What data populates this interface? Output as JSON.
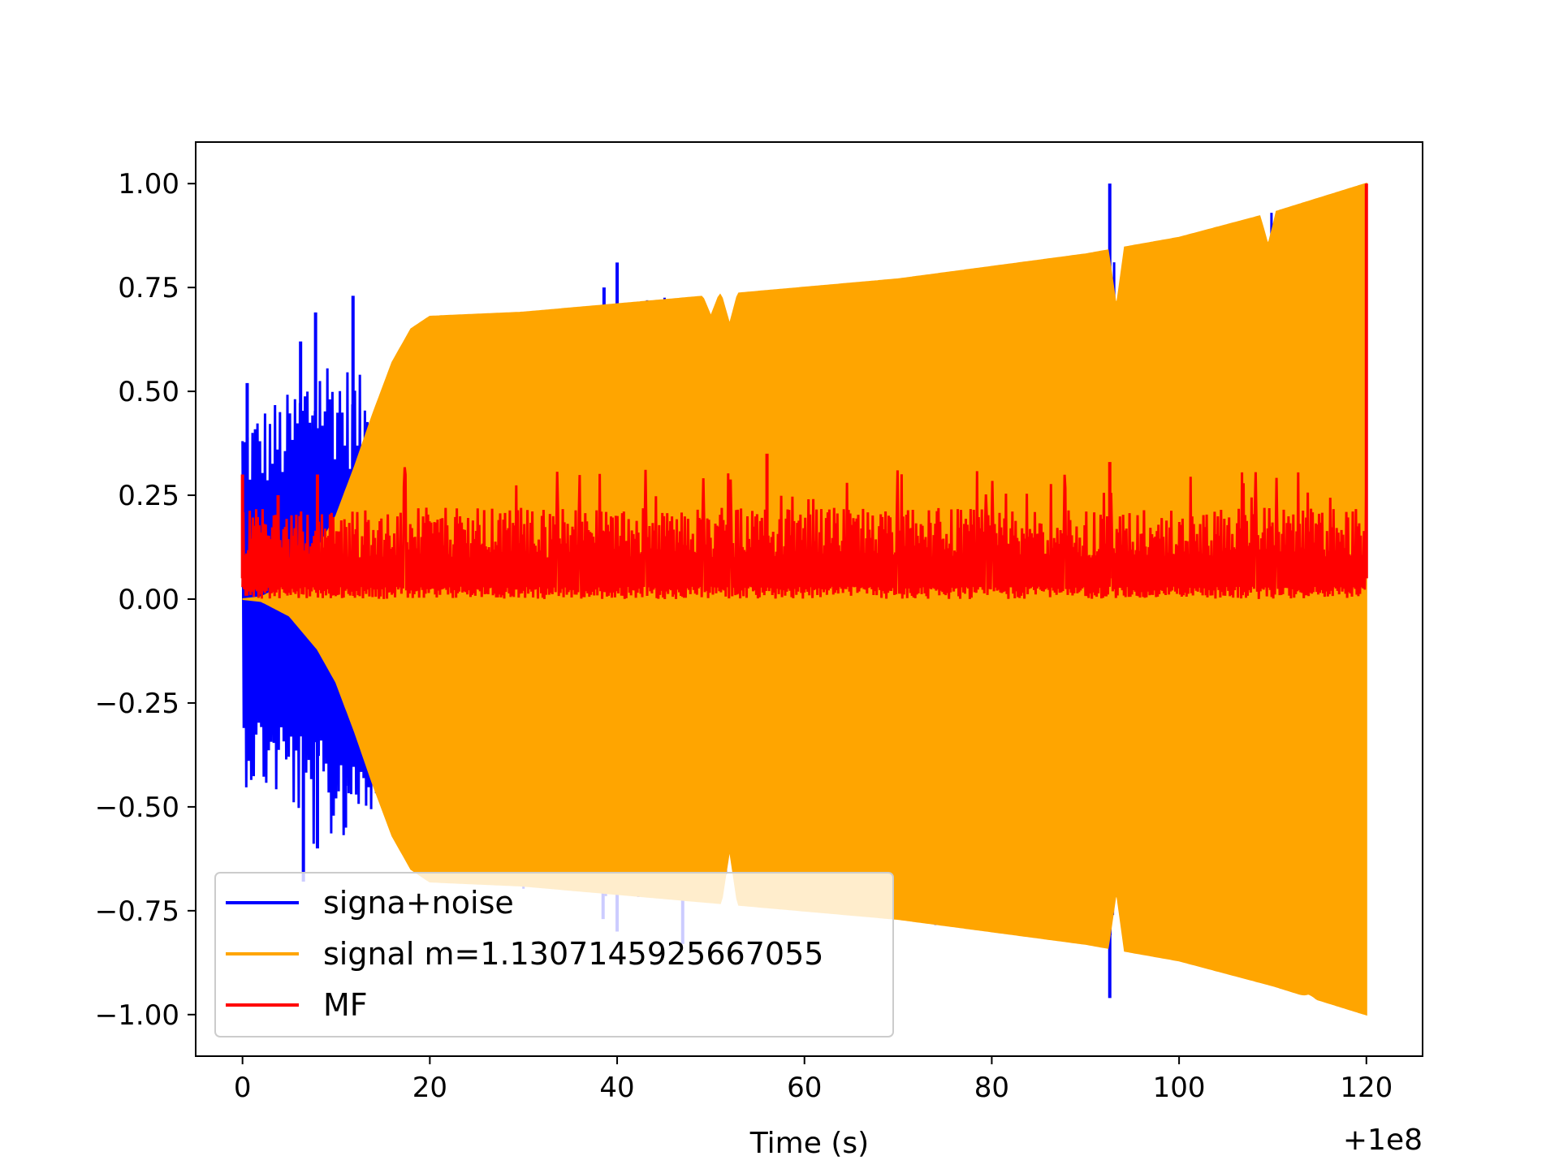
{
  "chart_data": {
    "type": "line",
    "title": "",
    "xlabel": "Time (s)",
    "ylabel": "",
    "x_offset_label": "+1e8",
    "xlim": [
      -5,
      126
    ],
    "ylim": [
      -1.1,
      1.1
    ],
    "x_ticks": [
      {
        "value": 0,
        "label": "0"
      },
      {
        "value": 20,
        "label": "20"
      },
      {
        "value": 40,
        "label": "40"
      },
      {
        "value": 60,
        "label": "60"
      },
      {
        "value": 80,
        "label": "80"
      },
      {
        "value": 100,
        "label": "100"
      },
      {
        "value": 120,
        "label": "120"
      }
    ],
    "y_ticks": [
      {
        "value": 1.0,
        "label": "1.00"
      },
      {
        "value": 0.75,
        "label": "0.75"
      },
      {
        "value": 0.5,
        "label": "0.50"
      },
      {
        "value": 0.25,
        "label": "0.25"
      },
      {
        "value": 0.0,
        "label": "0.00"
      },
      {
        "value": -0.25,
        "label": "−0.25"
      },
      {
        "value": -0.5,
        "label": "−0.50"
      },
      {
        "value": -0.75,
        "label": "−0.75"
      },
      {
        "value": -1.0,
        "label": "−1.00"
      }
    ],
    "grid": false,
    "legend_position": "lower-left",
    "series": [
      {
        "name": "signa+noise",
        "color": "#0000ff",
        "style": "noisy-oscillation",
        "x_range": [
          0,
          120
        ],
        "envelope": [
          [
            0,
            0.45
          ],
          [
            5,
            0.5
          ],
          [
            8,
            0.62
          ],
          [
            10,
            0.6
          ],
          [
            12,
            0.55
          ],
          [
            15,
            0.5
          ],
          [
            20,
            0.68
          ],
          [
            40,
            0.72
          ],
          [
            60,
            0.75
          ],
          [
            80,
            0.8
          ],
          [
            100,
            0.88
          ],
          [
            120,
            1.0
          ]
        ],
        "spikes": [
          {
            "x": 0.5,
            "y": 0.52
          },
          {
            "x": 6.2,
            "y": 0.62
          },
          {
            "x": 7.8,
            "y": 0.69
          },
          {
            "x": 11.8,
            "y": 0.73
          },
          {
            "x": 6.5,
            "y": -0.68
          },
          {
            "x": 8.0,
            "y": -0.6
          },
          {
            "x": 11.0,
            "y": -0.55
          },
          {
            "x": 38.6,
            "y": 0.75
          },
          {
            "x": 40.0,
            "y": 0.81
          },
          {
            "x": 38.5,
            "y": -0.77
          },
          {
            "x": 40.0,
            "y": -0.8
          },
          {
            "x": 47.0,
            "y": -0.83
          },
          {
            "x": 92.6,
            "y": 1.0
          },
          {
            "x": 92.6,
            "y": -0.96
          }
        ]
      },
      {
        "name": "signal m=1.1307145925667055",
        "color": "#ffa500",
        "style": "chirp-envelope",
        "x_range": [
          0,
          120
        ],
        "envelope": [
          [
            0,
            0.0
          ],
          [
            2,
            0.005
          ],
          [
            5,
            0.04
          ],
          [
            8,
            0.12
          ],
          [
            10,
            0.2
          ],
          [
            12,
            0.32
          ],
          [
            14,
            0.45
          ],
          [
            16,
            0.57
          ],
          [
            18,
            0.65
          ],
          [
            20,
            0.68
          ],
          [
            30,
            0.69
          ],
          [
            40,
            0.71
          ],
          [
            50,
            0.73
          ],
          [
            60,
            0.75
          ],
          [
            70,
            0.77
          ],
          [
            80,
            0.8
          ],
          [
            90,
            0.83
          ],
          [
            100,
            0.87
          ],
          [
            110,
            0.93
          ],
          [
            120,
            1.0
          ]
        ],
        "dips": [
          {
            "x": 50,
            "y": 0.68
          },
          {
            "x": 52,
            "y": 0.66
          },
          {
            "x": 52.0,
            "y": -0.6
          },
          {
            "x": 93.3,
            "y": 0.7
          },
          {
            "x": 93.3,
            "y": -0.7
          },
          {
            "x": 109.5,
            "y": 0.85
          },
          {
            "x": 113.8,
            "y": -0.95
          }
        ]
      },
      {
        "name": "MF",
        "color": "#ff0000",
        "style": "noisy-band",
        "x_range": [
          0,
          120
        ],
        "baseline": 0.1,
        "band": [
          0.0,
          0.22
        ],
        "peaks": [
          {
            "x": 0.0,
            "y": 0.3
          },
          {
            "x": 3.8,
            "y": 0.25
          },
          {
            "x": 8.0,
            "y": 0.3
          },
          {
            "x": 56.0,
            "y": 0.35
          },
          {
            "x": 92.6,
            "y": 0.33
          },
          {
            "x": 120.0,
            "y": 1.0
          }
        ]
      }
    ]
  }
}
